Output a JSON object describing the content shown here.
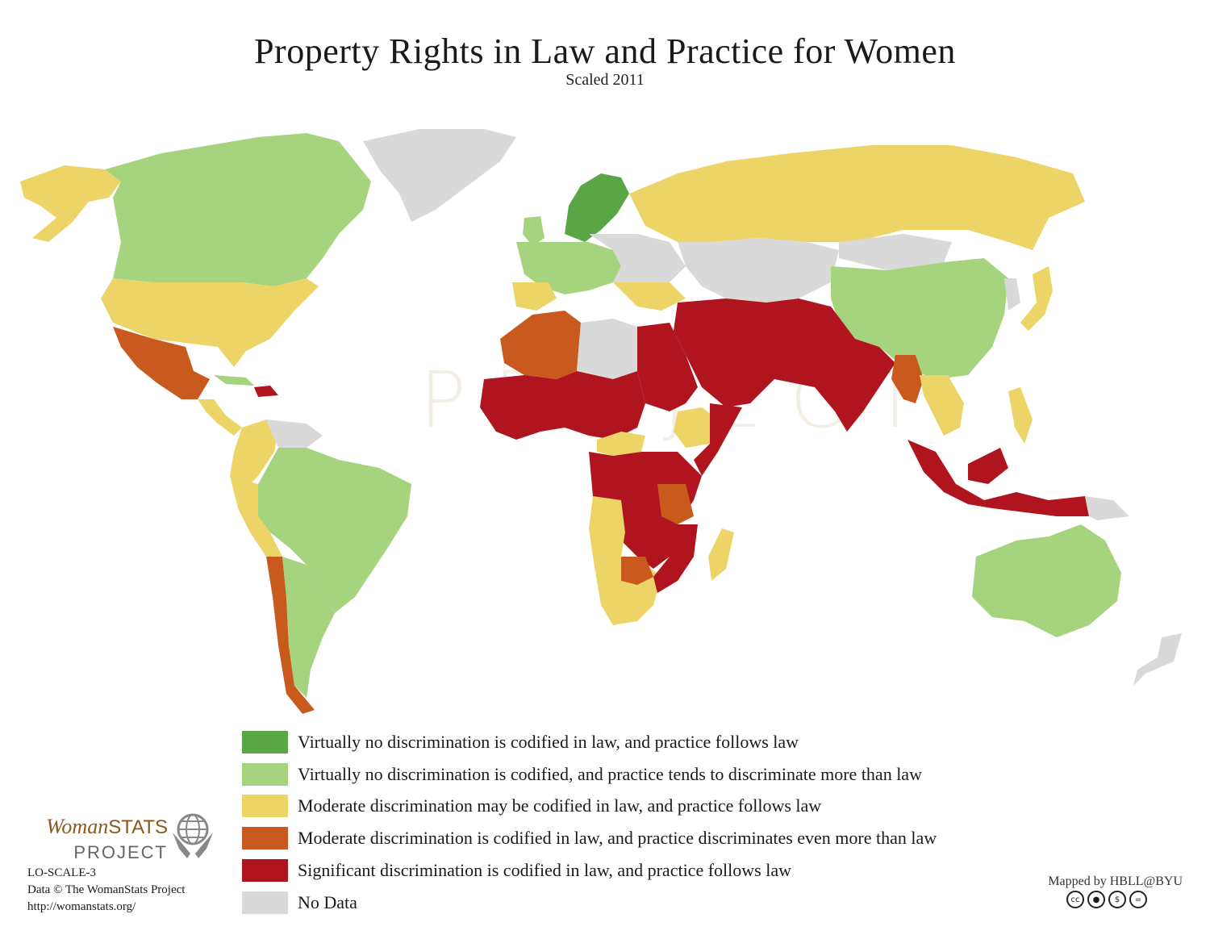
{
  "title": "Property Rights in Law and Practice for Women",
  "subtitle": "Scaled 2011",
  "watermark_text": "PROJECT",
  "colors": {
    "c1": "#5aa546",
    "c2": "#a6d37e",
    "c3": "#ecd467",
    "c4": "#c85a1d",
    "c5": "#b0151f",
    "nodata": "#d9d9d9",
    "ocean": "#ffffff"
  },
  "legend": [
    {
      "key": "c1",
      "color": "#5aa546",
      "label": "Virtually no discrimination is codified in law, and practice follows law"
    },
    {
      "key": "c2",
      "color": "#a6d37e",
      "label": "Virtually no discrimination is codified, and practice tends to discriminate more than law"
    },
    {
      "key": "c3",
      "color": "#ecd467",
      "label": "Moderate discrimination may be codified in law, and practice follows law"
    },
    {
      "key": "c4",
      "color": "#c85a1d",
      "label": "Moderate discrimination is codified in law, and practice discriminates even more than law"
    },
    {
      "key": "c5",
      "color": "#b0151f",
      "label": "Significant discrimination is codified in law, and practice follows law"
    },
    {
      "key": "nodata",
      "color": "#d9d9d9",
      "label": "No Data"
    }
  ],
  "logo": {
    "woman": "Woman",
    "stats": "STATS",
    "project": "PROJECT",
    "icon": "globe-hands-icon"
  },
  "meta": {
    "code": "LO-SCALE-3",
    "data_credit": "Data © The WomanStats Project",
    "url": "http://womanstats.org/"
  },
  "credit": "Mapped by HBLL@BYU",
  "license_icons": [
    "cc",
    "by",
    "nc",
    "nd"
  ]
}
